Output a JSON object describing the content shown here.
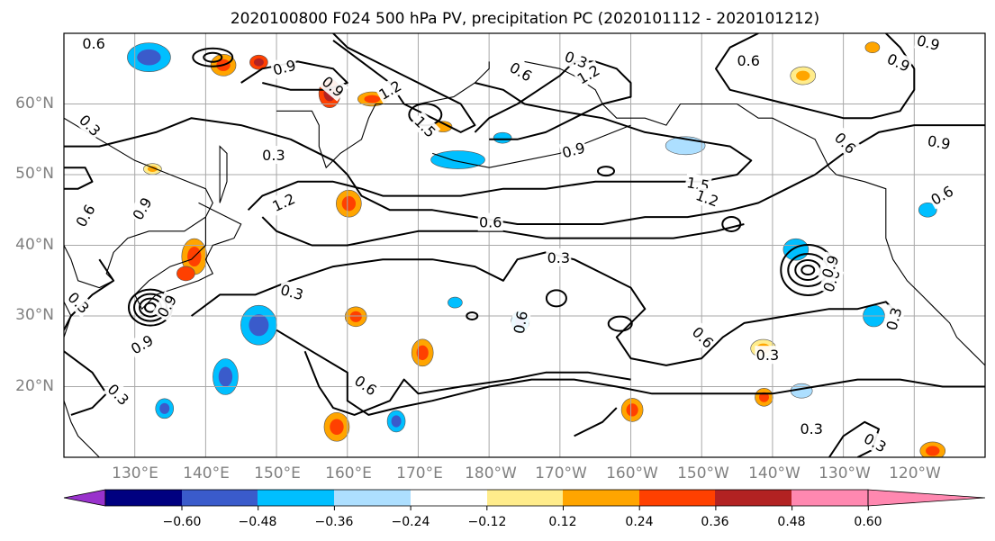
{
  "title": "2020100800 F024 500 hPa PV, precipitation PC (2020101112 - 2020101212)",
  "lat_ticks": [
    "60°N",
    "50°N",
    "40°N",
    "30°N",
    "20°N"
  ],
  "lon_ticks": [
    "130°E",
    "140°E",
    "150°E",
    "160°E",
    "170°E",
    "180°W",
    "170°W",
    "160°W",
    "150°W",
    "140°W",
    "130°W",
    "120°W"
  ],
  "colorbar": {
    "colors": [
      "#9932CC",
      "#000080",
      "#3A5BCB",
      "#00BFFF",
      "#ADDFFF",
      "#FFFFFF",
      "#FFEC8B",
      "#FFA500",
      "#FF4000",
      "#B22222",
      "#FF88B0"
    ],
    "tick_labels": [
      "−0.60",
      "−0.48",
      "−0.36",
      "−0.24",
      "−0.12",
      "0.12",
      "0.24",
      "0.36",
      "0.48",
      "0.60"
    ]
  },
  "contour_labels": [
    {
      "text": "0.6",
      "lon": 124.2,
      "lat": 68.6,
      "rot": 0
    },
    {
      "text": "0.9",
      "lon": 151.1,
      "lat": 65.2,
      "rot": -15
    },
    {
      "text": "0.9",
      "lon": 158.0,
      "lat": 62.5,
      "rot": 40
    },
    {
      "text": "1.2",
      "lon": 166.0,
      "lat": 62.0,
      "rot": -30
    },
    {
      "text": "1.5",
      "lon": 171.0,
      "lat": 56.8,
      "rot": 45
    },
    {
      "text": "0.6",
      "lon": 184.5,
      "lat": 64.6,
      "rot": 30
    },
    {
      "text": "1.2",
      "lon": 194.0,
      "lat": 64.2,
      "rot": -30
    },
    {
      "text": "0.3",
      "lon": 192.3,
      "lat": 66.3,
      "rot": 20
    },
    {
      "text": "0.6",
      "lon": 216.6,
      "lat": 66.2,
      "rot": 0
    },
    {
      "text": "0.9",
      "lon": 237.8,
      "lat": 65.9,
      "rot": 25
    },
    {
      "text": "0.9",
      "lon": 242.0,
      "lat": 68.7,
      "rot": 15
    },
    {
      "text": "0.3",
      "lon": 123.7,
      "lat": 57.0,
      "rot": 45
    },
    {
      "text": "0.3",
      "lon": 149.6,
      "lat": 52.8,
      "rot": 0
    },
    {
      "text": "1.2",
      "lon": 151.0,
      "lat": 46.1,
      "rot": -25
    },
    {
      "text": "0.9",
      "lon": 191.9,
      "lat": 53.5,
      "rot": -15
    },
    {
      "text": "1.5",
      "lon": 209.5,
      "lat": 48.7,
      "rot": 10
    },
    {
      "text": "1.2",
      "lon": 210.8,
      "lat": 46.7,
      "rot": 20
    },
    {
      "text": "0.6",
      "lon": 180.2,
      "lat": 43.3,
      "rot": 0
    },
    {
      "text": "0.3",
      "lon": 189.8,
      "lat": 38.3,
      "rot": 0
    },
    {
      "text": "0.6",
      "lon": 230.3,
      "lat": 54.5,
      "rot": 45
    },
    {
      "text": "0.9",
      "lon": 243.5,
      "lat": 54.6,
      "rot": 10
    },
    {
      "text": "0.6",
      "lon": 243.9,
      "lat": 47.1,
      "rot": -30
    },
    {
      "text": "0.6",
      "lon": 123.0,
      "lat": 44.2,
      "rot": -60
    },
    {
      "text": "0.9",
      "lon": 131.0,
      "lat": 45.2,
      "rot": -60
    },
    {
      "text": "0.3",
      "lon": 122.1,
      "lat": 31.9,
      "rot": 45
    },
    {
      "text": "0.9",
      "lon": 134.5,
      "lat": 31.4,
      "rot": -60
    },
    {
      "text": "0.9",
      "lon": 131.0,
      "lat": 26.0,
      "rot": -30
    },
    {
      "text": "0.3",
      "lon": 127.7,
      "lat": 18.9,
      "rot": 45
    },
    {
      "text": "0.3",
      "lon": 152.2,
      "lat": 33.4,
      "rot": 15
    },
    {
      "text": "0.6",
      "lon": 162.6,
      "lat": 20.2,
      "rot": 35
    },
    {
      "text": "0.6",
      "lon": 184.4,
      "lat": 29.1,
      "rot": -80
    },
    {
      "text": "0.6",
      "lon": 210.2,
      "lat": 27.0,
      "rot": 45
    },
    {
      "text": "0.3",
      "lon": 219.3,
      "lat": 24.5,
      "rot": 0
    },
    {
      "text": "0.6",
      "lon": 228.3,
      "lat": 35.0,
      "rot": -70
    },
    {
      "text": "0.9",
      "lon": 228.1,
      "lat": 37.0,
      "rot": -70
    },
    {
      "text": "0.3",
      "lon": 237.1,
      "lat": 29.6,
      "rot": -75
    },
    {
      "text": "0.3",
      "lon": 225.5,
      "lat": 14.1,
      "rot": 0
    },
    {
      "text": "0.3",
      "lon": 234.5,
      "lat": 12.1,
      "rot": 30
    }
  ]
}
